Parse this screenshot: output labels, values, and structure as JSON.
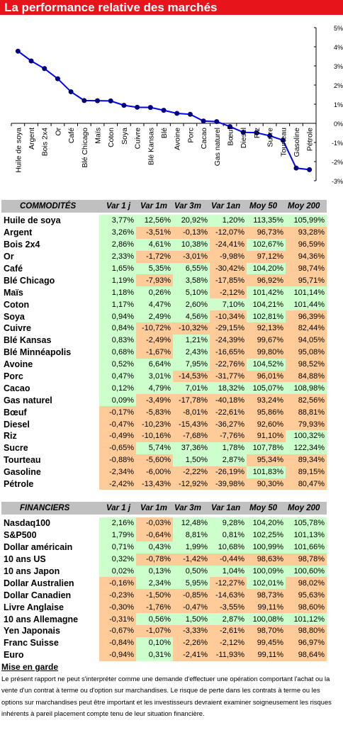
{
  "title": "La performance relative des marchés",
  "chart_data": {
    "type": "line",
    "categories": [
      "Huile de soya",
      "Argent",
      "Bois 2x4",
      "Or",
      "Café",
      "Blé Chicago",
      "Maïs",
      "Coton",
      "Soya",
      "Cuivre",
      "Blé Kansas",
      "Blé",
      "Avoine",
      "Porc",
      "Cacao",
      "Gas naturel",
      "Bœuf",
      "Diesel",
      "Riz",
      "Sucre",
      "Tourteau",
      "Gasoline",
      "Pétrole"
    ],
    "values": [
      3.77,
      3.26,
      2.86,
      2.33,
      1.65,
      1.19,
      1.18,
      1.17,
      0.94,
      0.84,
      0.83,
      0.68,
      0.52,
      0.47,
      0.12,
      0.09,
      -0.17,
      -0.47,
      -0.49,
      -0.65,
      -0.88,
      -2.34,
      -2.42
    ],
    "y_ticks": [
      "5%",
      "4%",
      "3%",
      "2%",
      "1%",
      "0%",
      "-1%",
      "-2%",
      "-3%"
    ],
    "ylim": [
      -3,
      5
    ],
    "color": "#0000ff"
  },
  "commodities": {
    "header": [
      "COMMODITÉS",
      "Var 1 j",
      "Var 1m",
      "Var 3m",
      "Var 1an",
      "Moy 50",
      "Moy 200"
    ],
    "rows": [
      {
        "name": "Huile de soya",
        "v": [
          "3,77%",
          "12,56%",
          "20,92%",
          "1,20%",
          "113,35%",
          "105,99%"
        ],
        "c": [
          "g",
          "g",
          "g",
          "g",
          "g",
          "g"
        ]
      },
      {
        "name": "Argent",
        "v": [
          "3,26%",
          "-3,51%",
          "-0,13%",
          "-12,07%",
          "96,73%",
          "93,28%"
        ],
        "c": [
          "g",
          "o",
          "o",
          "o",
          "o",
          "o"
        ]
      },
      {
        "name": "Bois 2x4",
        "v": [
          "2,86%",
          "4,61%",
          "10,38%",
          "-24,41%",
          "102,67%",
          "96,59%"
        ],
        "c": [
          "g",
          "g",
          "g",
          "o",
          "g",
          "o"
        ]
      },
      {
        "name": "Or",
        "v": [
          "2,33%",
          "-1,72%",
          "-3,01%",
          "-9,98%",
          "97,12%",
          "94,36%"
        ],
        "c": [
          "g",
          "o",
          "o",
          "o",
          "o",
          "o"
        ]
      },
      {
        "name": "Café",
        "v": [
          "1,65%",
          "5,35%",
          "6,55%",
          "-30,42%",
          "104,20%",
          "98,74%"
        ],
        "c": [
          "g",
          "g",
          "g",
          "o",
          "g",
          "o"
        ]
      },
      {
        "name": "Blé Chicago",
        "v": [
          "1,19%",
          "-7,93%",
          "3,58%",
          "-17,85%",
          "96,92%",
          "95,71%"
        ],
        "c": [
          "g",
          "o",
          "g",
          "o",
          "o",
          "o"
        ]
      },
      {
        "name": "Maïs",
        "v": [
          "1,18%",
          "0,26%",
          "5,10%",
          "-2,12%",
          "101,42%",
          "101,14%"
        ],
        "c": [
          "g",
          "g",
          "g",
          "o",
          "g",
          "g"
        ]
      },
      {
        "name": "Coton",
        "v": [
          "1,17%",
          "4,47%",
          "2,60%",
          "7,10%",
          "104,21%",
          "101,44%"
        ],
        "c": [
          "g",
          "g",
          "g",
          "g",
          "g",
          "g"
        ]
      },
      {
        "name": "Soya",
        "v": [
          "0,94%",
          "2,49%",
          "4,56%",
          "-10,34%",
          "102,81%",
          "96,39%"
        ],
        "c": [
          "g",
          "g",
          "g",
          "o",
          "g",
          "o"
        ]
      },
      {
        "name": "Cuivre",
        "v": [
          "0,84%",
          "-10,72%",
          "-10,32%",
          "-29,15%",
          "92,13%",
          "82,44%"
        ],
        "c": [
          "g",
          "o",
          "o",
          "o",
          "o",
          "o"
        ]
      },
      {
        "name": "Blé Kansas",
        "v": [
          "0,83%",
          "-2,49%",
          "1,21%",
          "-24,39%",
          "99,67%",
          "94,05%"
        ],
        "c": [
          "g",
          "o",
          "g",
          "o",
          "o",
          "o"
        ]
      },
      {
        "name": "Blé Minnéapolis",
        "v": [
          "0,68%",
          "-1,67%",
          "2,43%",
          "-16,65%",
          "99,80%",
          "95,08%"
        ],
        "c": [
          "g",
          "o",
          "g",
          "o",
          "o",
          "o"
        ]
      },
      {
        "name": "Avoine",
        "v": [
          "0,52%",
          "6,64%",
          "7,95%",
          "-22,76%",
          "104,52%",
          "98,52%"
        ],
        "c": [
          "g",
          "g",
          "g",
          "o",
          "g",
          "o"
        ]
      },
      {
        "name": "Porc",
        "v": [
          "0,47%",
          "3,01%",
          "-14,53%",
          "-31,77%",
          "96,01%",
          "84,88%"
        ],
        "c": [
          "g",
          "g",
          "o",
          "o",
          "o",
          "o"
        ]
      },
      {
        "name": "Cacao",
        "v": [
          "0,12%",
          "4,79%",
          "7,01%",
          "18,32%",
          "105,07%",
          "108,98%"
        ],
        "c": [
          "g",
          "g",
          "g",
          "g",
          "g",
          "g"
        ]
      },
      {
        "name": "Gas naturel",
        "v": [
          "0,09%",
          "-3,49%",
          "-17,78%",
          "-40,18%",
          "93,24%",
          "82,56%"
        ],
        "c": [
          "g",
          "o",
          "o",
          "o",
          "o",
          "o"
        ]
      },
      {
        "name": "Bœuf",
        "v": [
          "-0,17%",
          "-5,83%",
          "-8,01%",
          "-22,61%",
          "95,86%",
          "88,81%"
        ],
        "c": [
          "o",
          "o",
          "o",
          "o",
          "o",
          "o"
        ]
      },
      {
        "name": "Diesel",
        "v": [
          "-0,47%",
          "-10,23%",
          "-15,43%",
          "-36,27%",
          "92,60%",
          "79,93%"
        ],
        "c": [
          "o",
          "o",
          "o",
          "o",
          "o",
          "o"
        ]
      },
      {
        "name": "Riz",
        "v": [
          "-0,49%",
          "-10,16%",
          "-7,68%",
          "-7,76%",
          "91,10%",
          "100,32%"
        ],
        "c": [
          "o",
          "o",
          "o",
          "o",
          "o",
          "g"
        ]
      },
      {
        "name": "Sucre",
        "v": [
          "-0,65%",
          "5,74%",
          "37,36%",
          "1,78%",
          "107,78%",
          "122,34%"
        ],
        "c": [
          "o",
          "g",
          "g",
          "g",
          "g",
          "g"
        ]
      },
      {
        "name": "Tourteau",
        "v": [
          "-0,88%",
          "-5,60%",
          "1,50%",
          "2,87%",
          "95,34%",
          "89,34%"
        ],
        "c": [
          "o",
          "o",
          "g",
          "g",
          "o",
          "o"
        ]
      },
      {
        "name": "Gasoline",
        "v": [
          "-2,34%",
          "-6,00%",
          "-2,22%",
          "-26,19%",
          "101,83%",
          "89,15%"
        ],
        "c": [
          "o",
          "o",
          "o",
          "o",
          "g",
          "o"
        ]
      },
      {
        "name": "Pétrole",
        "v": [
          "-2,42%",
          "-13,43%",
          "-12,92%",
          "-39,98%",
          "90,30%",
          "80,47%"
        ],
        "c": [
          "o",
          "o",
          "o",
          "o",
          "o",
          "o"
        ]
      }
    ]
  },
  "financials": {
    "header": [
      "FINANCIERS",
      "Var 1 j",
      "Var 1m",
      "Var 3m",
      "Var 1an",
      "Moy 50",
      "Moy 200"
    ],
    "rows": [
      {
        "name": "Nasdaq100",
        "v": [
          "2,16%",
          "-0,03%",
          "12,48%",
          "9,28%",
          "104,20%",
          "105,78%"
        ],
        "c": [
          "g",
          "o",
          "g",
          "g",
          "g",
          "g"
        ]
      },
      {
        "name": "S&P500",
        "v": [
          "1,79%",
          "-0,64%",
          "8,81%",
          "0,81%",
          "102,25%",
          "101,13%"
        ],
        "c": [
          "g",
          "o",
          "g",
          "g",
          "g",
          "g"
        ]
      },
      {
        "name": "Dollar américain",
        "v": [
          "0,71%",
          "0,43%",
          "1,99%",
          "10,68%",
          "100,99%",
          "101,66%"
        ],
        "c": [
          "g",
          "g",
          "g",
          "g",
          "g",
          "g"
        ]
      },
      {
        "name": "10 ans US",
        "v": [
          "0,32%",
          "-0,78%",
          "-1,42%",
          "-0,44%",
          "98,63%",
          "98,78%"
        ],
        "c": [
          "g",
          "o",
          "o",
          "o",
          "o",
          "o"
        ]
      },
      {
        "name": "10 ans Japon",
        "v": [
          "0,02%",
          "0,13%",
          "0,50%",
          "1,04%",
          "100,09%",
          "100,60%"
        ],
        "c": [
          "g",
          "g",
          "g",
          "g",
          "g",
          "g"
        ]
      },
      {
        "name": "Dollar Australien",
        "v": [
          "-0,16%",
          "2,34%",
          "5,95%",
          "-12,27%",
          "102,01%",
          "98,02%"
        ],
        "c": [
          "o",
          "g",
          "g",
          "o",
          "g",
          "o"
        ]
      },
      {
        "name": "Dollar Canadien",
        "v": [
          "-0,23%",
          "-1,50%",
          "-0,85%",
          "-14,63%",
          "98,73%",
          "95,63%"
        ],
        "c": [
          "o",
          "o",
          "o",
          "o",
          "o",
          "o"
        ]
      },
      {
        "name": "Livre Anglaise",
        "v": [
          "-0,30%",
          "-1,76%",
          "-0,47%",
          "-3,55%",
          "99,11%",
          "98,60%"
        ],
        "c": [
          "o",
          "o",
          "o",
          "o",
          "o",
          "o"
        ]
      },
      {
        "name": "10 ans Allemagne",
        "v": [
          "-0,31%",
          "0,56%",
          "1,50%",
          "2,87%",
          "100,08%",
          "101,12%"
        ],
        "c": [
          "o",
          "g",
          "g",
          "g",
          "g",
          "g"
        ]
      },
      {
        "name": "Yen Japonais",
        "v": [
          "-0,67%",
          "-1,07%",
          "-3,33%",
          "-2,61%",
          "98,70%",
          "98,80%"
        ],
        "c": [
          "o",
          "o",
          "o",
          "o",
          "o",
          "o"
        ]
      },
      {
        "name": "Franc Suisse",
        "v": [
          "-0,84%",
          "0,10%",
          "-2,26%",
          "-2,12%",
          "99,45%",
          "96,97%"
        ],
        "c": [
          "o",
          "g",
          "o",
          "o",
          "o",
          "o"
        ]
      },
      {
        "name": "Euro",
        "v": [
          "-0,94%",
          "0,31%",
          "-2,41%",
          "-11,93%",
          "99,11%",
          "98,64%"
        ],
        "c": [
          "o",
          "g",
          "o",
          "o",
          "o",
          "o"
        ]
      }
    ]
  },
  "disclaimer": {
    "heading": "Mise en garde",
    "text": "Le présent rapport ne peut s'interpréter comme une demande d'effectuer une opération comportant l'achat ou la vente d'un contrat à terme ou d'option sur marchandises. Le risque de perte dans les contrats à terme ou les options sur marchandises peut être important et les investisseurs devraient examiner soigneusement les risques inhérents à pareil placement compte tenu de leur situation financière."
  }
}
